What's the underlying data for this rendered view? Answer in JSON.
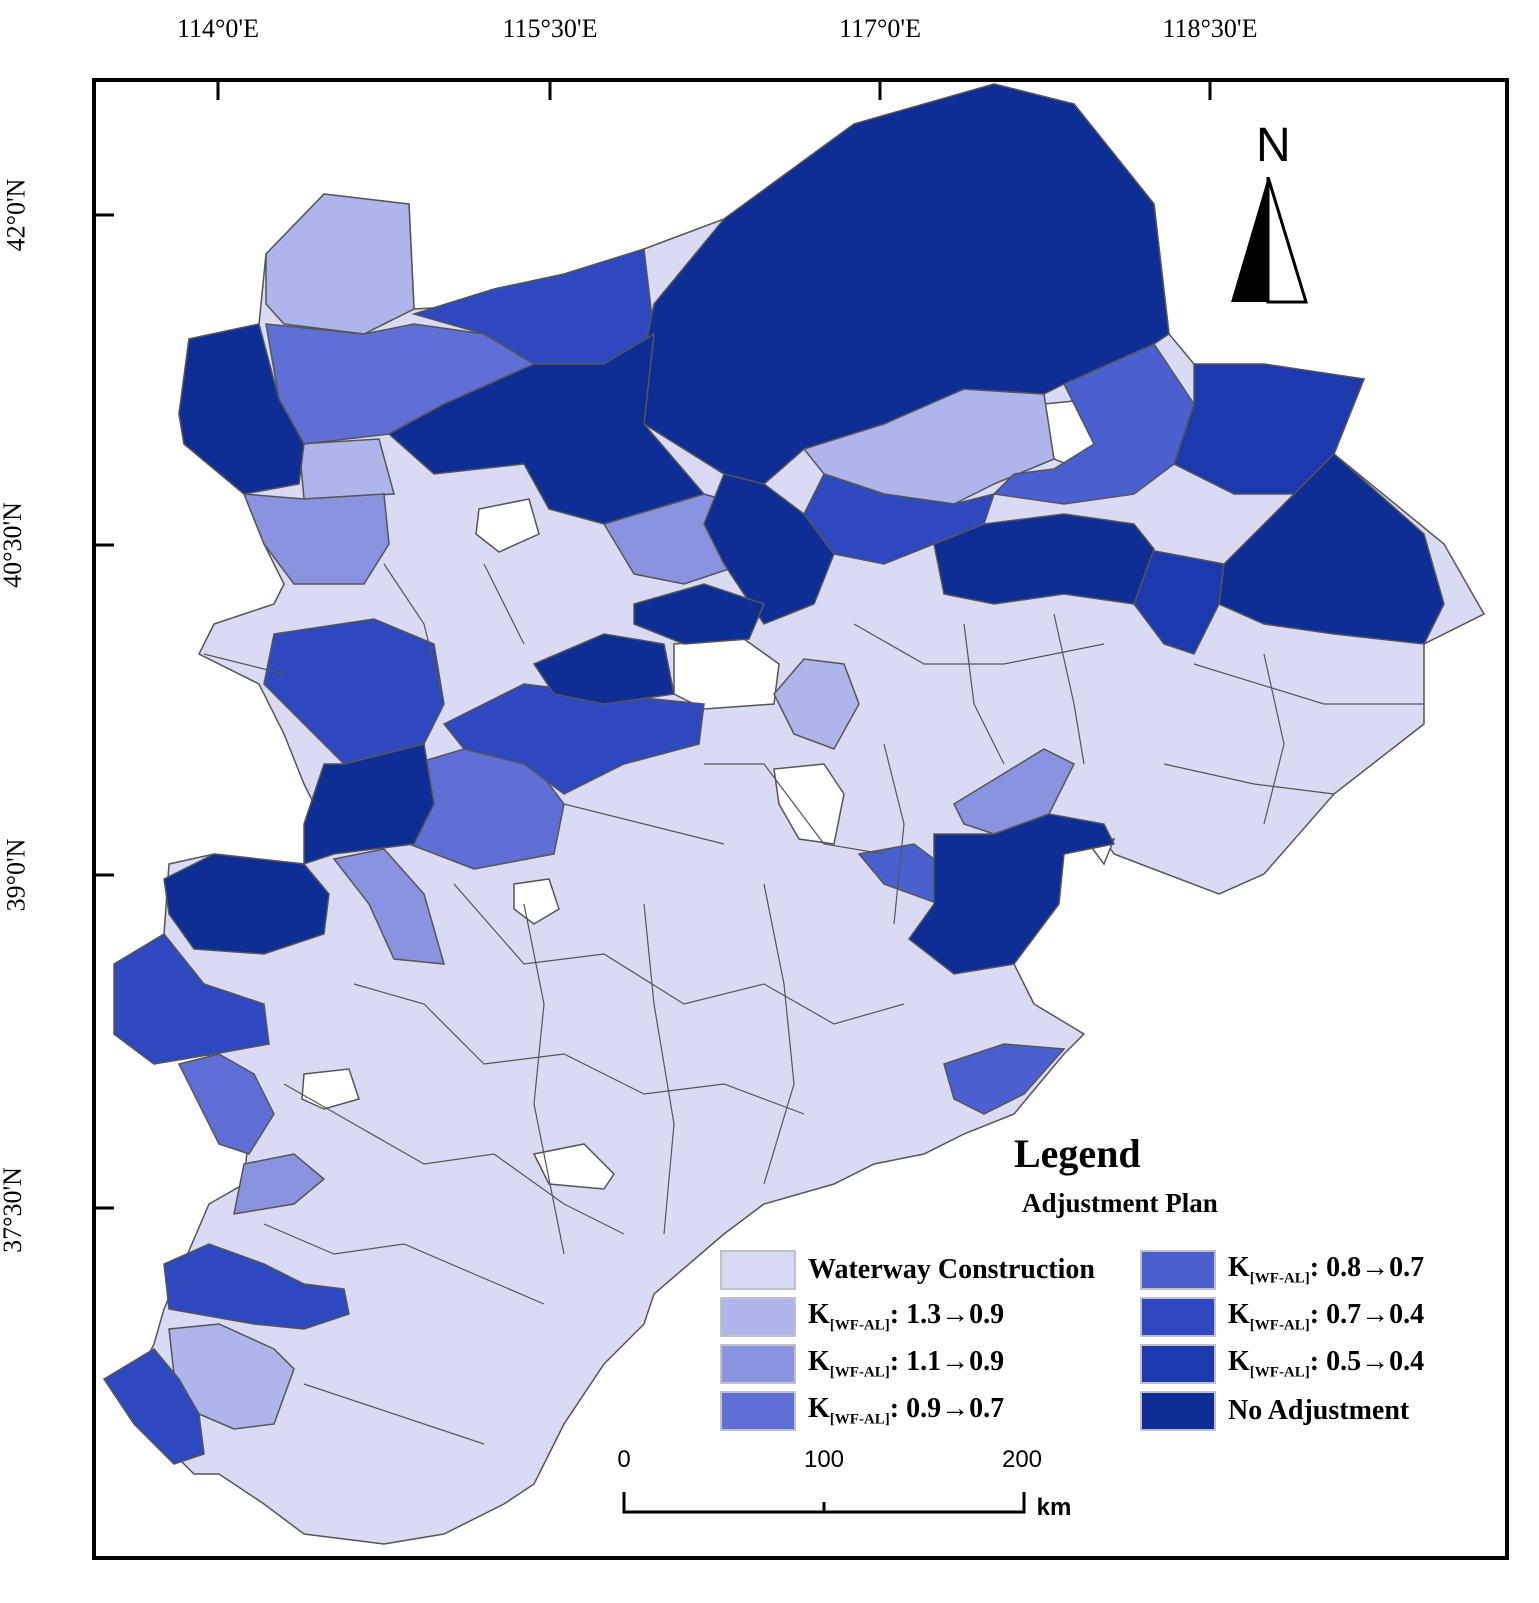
{
  "top_ticks": [
    "114°0'E",
    "115°30'E",
    "117°0'E",
    "118°30'E"
  ],
  "left_ticks": [
    "42°0'N",
    "40°30'N",
    "39°0'N",
    "37°30'N"
  ],
  "north_label": "N",
  "legend": {
    "title": "Legend",
    "subtitle": "Adjustment Plan",
    "items": [
      {
        "label": "Waterway Construction",
        "color": "#d9dbf5"
      },
      {
        "label_prefix": "K",
        "label_sub": "[WF-AL]",
        "label_suffix": ": 1.3→0.9",
        "color": "#aeb5ea"
      },
      {
        "label_prefix": "K",
        "label_sub": "[WF-AL]",
        "label_suffix": ": 1.1→0.9",
        "color": "#8a93e0"
      },
      {
        "label_prefix": "K",
        "label_sub": "[WF-AL]",
        "label_suffix": ": 0.9→0.7",
        "color": "#5f6fd6"
      },
      {
        "label_prefix": "K",
        "label_sub": "[WF-AL]",
        "label_suffix": ": 0.8→0.7",
        "color": "#4a5fd0"
      },
      {
        "label_prefix": "K",
        "label_sub": "[WF-AL]",
        "label_suffix": ": 0.7→0.4",
        "color": "#2e48c0"
      },
      {
        "label_prefix": "K",
        "label_sub": "[WF-AL]",
        "label_suffix": ": 0.5→0.4",
        "color": "#1c3aad"
      },
      {
        "label": "No Adjustment",
        "color": "#0e2e96"
      }
    ]
  },
  "scale": {
    "labels": [
      "0",
      "100",
      "200"
    ],
    "unit": "km"
  }
}
